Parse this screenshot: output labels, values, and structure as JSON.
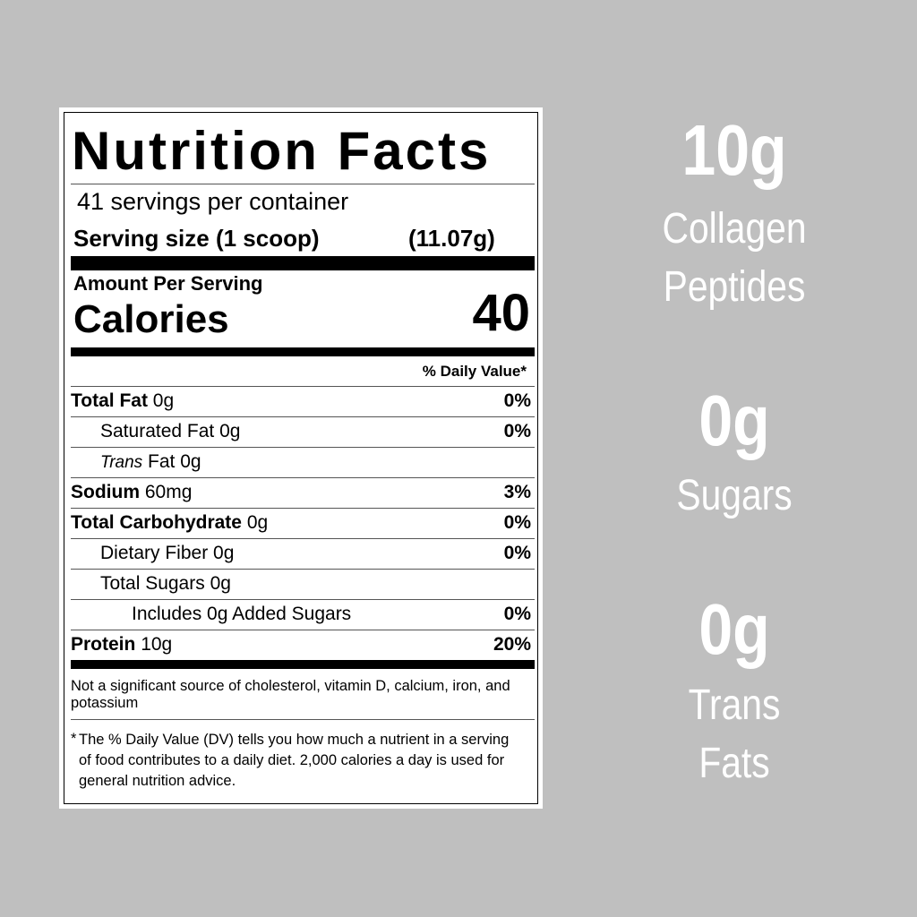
{
  "label": {
    "title": "Nutrition Facts",
    "servings": "41 servings per container",
    "serving_size_label": "Serving size (1 scoop)",
    "serving_size_value": "(11.07g)",
    "amount_per_serving": "Amount Per Serving",
    "calories_label": "Calories",
    "calories_value": "40",
    "dv_header": "% Daily Value*",
    "rows": [
      {
        "name": "Total Fat",
        "amount": "0g",
        "dv": "0%",
        "bold": true,
        "indent": 0
      },
      {
        "name": "Saturated Fat",
        "amount": "0g",
        "dv": "0%",
        "bold": false,
        "indent": 1
      },
      {
        "name": "Trans",
        "name2": "Fat",
        "amount": "0g",
        "dv": "",
        "bold": false,
        "indent": 1
      },
      {
        "name": "Sodium",
        "amount": "60mg",
        "dv": "3%",
        "bold": true,
        "indent": 0
      },
      {
        "name": "Total Carbohydrate",
        "amount": "0g",
        "dv": "0%",
        "bold": true,
        "indent": 0
      },
      {
        "name": "Dietary Fiber",
        "amount": "0g",
        "dv": "0%",
        "bold": false,
        "indent": 1
      },
      {
        "name": "Total Sugars",
        "amount": "0g",
        "dv": "",
        "bold": false,
        "indent": 1
      },
      {
        "name": "Includes 0g Added Sugars",
        "amount": "",
        "dv": "0%",
        "bold": false,
        "indent": 2
      },
      {
        "name": "Protein",
        "amount": "10g",
        "dv": "20%",
        "bold": true,
        "indent": 0
      }
    ],
    "not_significant": "Not a significant source of cholesterol, vitamin D, calcium, iron, and potassium",
    "footnote_star": "*",
    "footnote": "The % Daily Value (DV) tells you how much a nutrient in a serving of food contributes to a daily diet. 2,000 calories a day is used for general nutrition advice."
  },
  "highlights": [
    {
      "value": "10g",
      "line1": "Collagen",
      "line2": "Peptides"
    },
    {
      "value": "0g",
      "line1": "Sugars",
      "line2": ""
    },
    {
      "value": "0g",
      "line1": "Trans",
      "line2": "Fats"
    }
  ]
}
